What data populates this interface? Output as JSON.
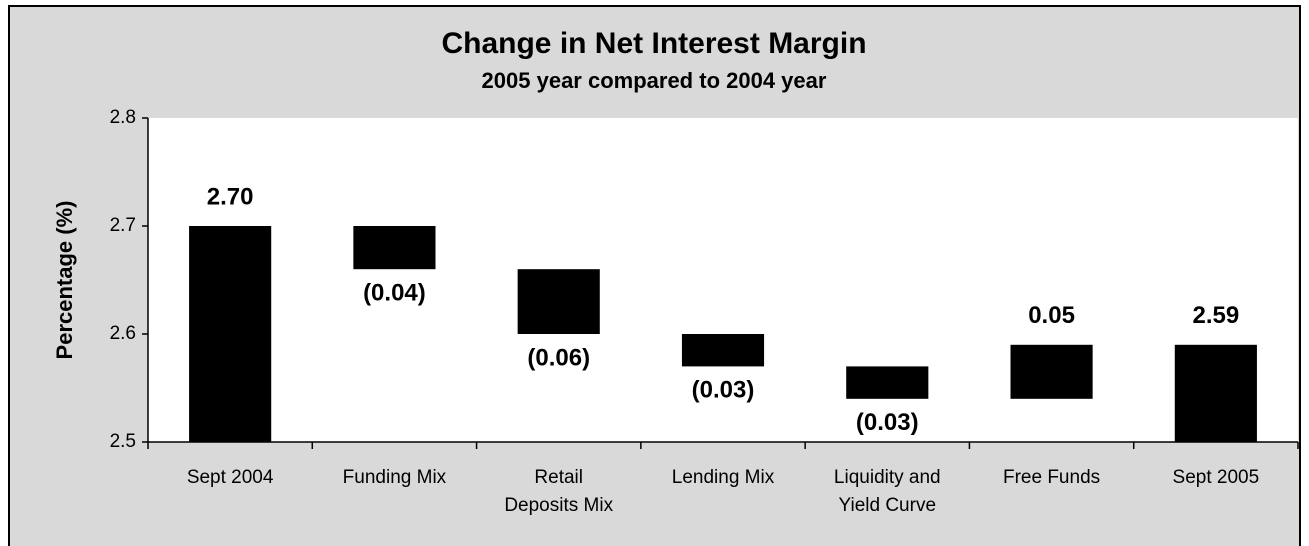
{
  "chart_data": {
    "type": "waterfall",
    "title": "Change in Net Interest Margin",
    "subtitle": "2005 year compared to 2004 year",
    "y_label": "Percentage (%)",
    "categories": [
      "Sept 2004",
      "Funding Mix",
      "Retail Deposits Mix",
      "Lending Mix",
      "Liquidity and Yield Curve",
      "Free Funds",
      "Sept 2005"
    ],
    "values": [
      2.7,
      -0.04,
      -0.06,
      -0.03,
      -0.03,
      0.05,
      2.59
    ],
    "value_labels": [
      "2.70",
      "(0.04)",
      "(0.06)",
      "(0.03)",
      "(0.03)",
      "0.05",
      "2.59"
    ],
    "totals": [
      0,
      6
    ],
    "color": "#000000",
    "ylim": [
      2.5,
      2.8
    ],
    "yticks": [
      2.5,
      2.6,
      2.7,
      2.8
    ],
    "grid": false
  }
}
